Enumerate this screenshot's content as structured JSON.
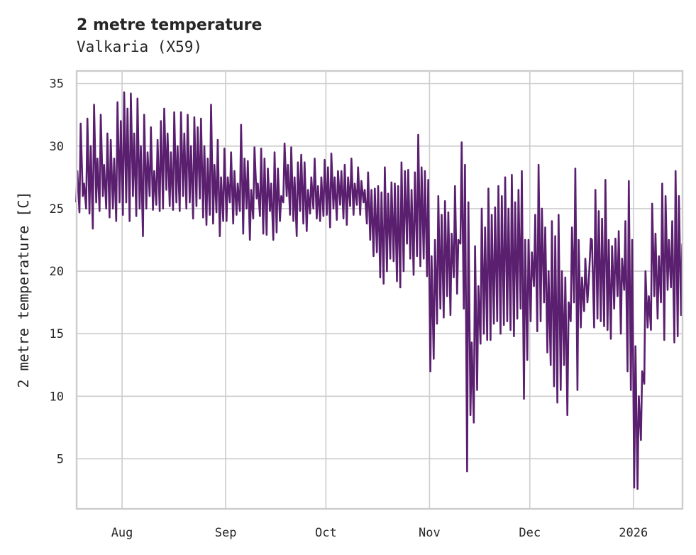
{
  "chart_data": {
    "type": "line",
    "title": "2 metre temperature",
    "subtitle": "Valkaria (X59)",
    "xlabel": "",
    "ylabel": "2 metre temperature [C]",
    "ylim": [
      1.0,
      36.0
    ],
    "xlim_days_since_start": [
      0.4,
      181.7
    ],
    "start_date": "2025-07-18",
    "grid": true,
    "color": "#5a1f6e",
    "yticks": [
      5,
      10,
      15,
      20,
      25,
      30,
      35
    ],
    "xticks": [
      {
        "label": "Aug",
        "day": 14
      },
      {
        "label": "Sep",
        "day": 45
      },
      {
        "label": "Oct",
        "day": 75
      },
      {
        "label": "Nov",
        "day": 106
      },
      {
        "label": "Dec",
        "day": 136
      },
      {
        "label": "2026",
        "day": 167
      }
    ],
    "series": [
      {
        "name": "2 metre temperature",
        "daily_min": [
          25.5,
          24.7,
          26,
          25,
          24.6,
          23.4,
          25.5,
          24.8,
          26,
          25,
          24.3,
          25,
          24,
          25.5,
          24.5,
          25.5,
          24,
          26,
          24.4,
          25,
          22.8,
          25,
          26,
          24.9,
          25.3,
          24.8,
          25,
          26.5,
          25.2,
          24.9,
          25.5,
          24.8,
          26,
          25,
          25.5,
          24.2,
          25.2,
          25.8,
          24.3,
          23.7,
          24.5,
          23.8,
          24.7,
          22.8,
          24,
          24,
          25.5,
          23.8,
          24.5,
          24.8,
          23,
          25,
          22.5,
          24.2,
          25.8,
          24.4,
          23,
          22.9,
          24.8,
          22.5,
          23.1,
          24,
          25.5,
          26,
          24.5,
          24,
          22.8,
          24.8,
          23.8,
          23.2,
          24.6,
          25,
          24.2,
          24,
          24.4,
          24.5,
          23.5,
          25,
          24.1,
          25.3,
          24.2,
          23.7,
          25.2,
          24.5,
          25.3,
          24.5,
          25.5,
          23.8,
          22.5,
          21.2,
          21.5,
          19.5,
          19,
          20,
          21,
          20.8,
          19.2,
          18.7,
          20,
          22.2,
          21,
          19.7,
          21.2,
          20.4,
          21,
          19.6,
          12,
          13,
          15.8,
          17,
          16.3,
          18,
          16.5,
          19.5,
          18.2,
          22.2,
          17,
          4,
          8.5,
          7.9,
          10.5,
          14.2,
          15,
          14.5,
          14.5,
          15.8,
          16,
          15,
          15.7,
          16,
          15.3,
          14.8,
          16.2,
          17,
          9.8,
          12.9,
          16,
          18.8,
          15.2,
          16,
          17.5,
          13.5,
          12.5,
          10.8,
          9.5,
          10.5,
          12.5,
          8.5,
          16,
          17.5,
          10.5,
          15.5,
          16.8,
          17.5,
          22.6,
          15.5,
          16.2,
          16,
          15.6,
          15.3,
          14.6,
          17,
          18,
          15,
          18.5,
          12,
          10.5,
          2.7,
          2.6,
          6.5,
          11,
          15.5,
          15.3,
          18,
          16.2,
          17.5,
          14.5,
          18.5,
          18.7,
          14.3,
          14.8,
          16.5
        ],
        "daily_max": [
          28,
          31.8,
          27,
          32.2,
          30,
          33.3,
          29,
          32.5,
          28.5,
          31,
          30.5,
          29,
          33.5,
          32,
          34.3,
          33,
          34.2,
          31,
          33.8,
          30,
          32.5,
          29.5,
          31.5,
          28,
          30.5,
          32,
          33,
          31,
          29.5,
          32.7,
          30,
          32.7,
          31,
          32.5,
          30,
          32.3,
          31.5,
          32.2,
          30,
          29,
          33.3,
          28.5,
          30.5,
          27.5,
          29.8,
          27.5,
          29.5,
          28,
          27,
          31.7,
          29,
          28.8,
          26.5,
          29.9,
          27,
          29.8,
          29,
          28.2,
          27,
          29.5,
          28.2,
          26,
          30.2,
          28.5,
          29.9,
          27.5,
          28.7,
          29.3,
          28.7,
          26.5,
          27.5,
          29,
          26.8,
          27.5,
          28.9,
          28.3,
          29.4,
          27.5,
          28,
          28,
          28.5,
          27.5,
          29,
          27,
          28.3,
          27.2,
          26.5,
          27.9,
          26.5,
          26.6,
          26.8,
          26.3,
          28.3,
          26.2,
          27.1,
          27,
          26.8,
          28.7,
          28,
          28.1,
          26.5,
          27.9,
          30.9,
          28.3,
          28,
          27.3,
          21.2,
          22.5,
          26,
          24.5,
          25.6,
          24.7,
          23,
          26.8,
          22.5,
          30.3,
          28.5,
          25.5,
          14.3,
          22,
          18.8,
          25,
          23.5,
          26.6,
          24.5,
          25.1,
          26.8,
          26,
          27.5,
          25,
          27.7,
          25.5,
          26.5,
          28,
          22.5,
          22.5,
          21.5,
          24.5,
          28.5,
          25,
          23.5,
          20,
          24,
          22.8,
          24.5,
          20,
          19.5,
          17.5,
          23.5,
          28.2,
          22.5,
          19.5,
          21,
          19,
          22.5,
          26.5,
          24.8,
          24.2,
          27.3,
          22.5,
          22,
          22.6,
          23.2,
          21,
          24,
          27.2,
          22.5,
          14,
          10,
          12,
          20,
          18,
          25.4,
          23,
          21.2,
          27,
          26,
          22.5,
          24,
          28,
          26,
          22.2
        ]
      }
    ]
  }
}
